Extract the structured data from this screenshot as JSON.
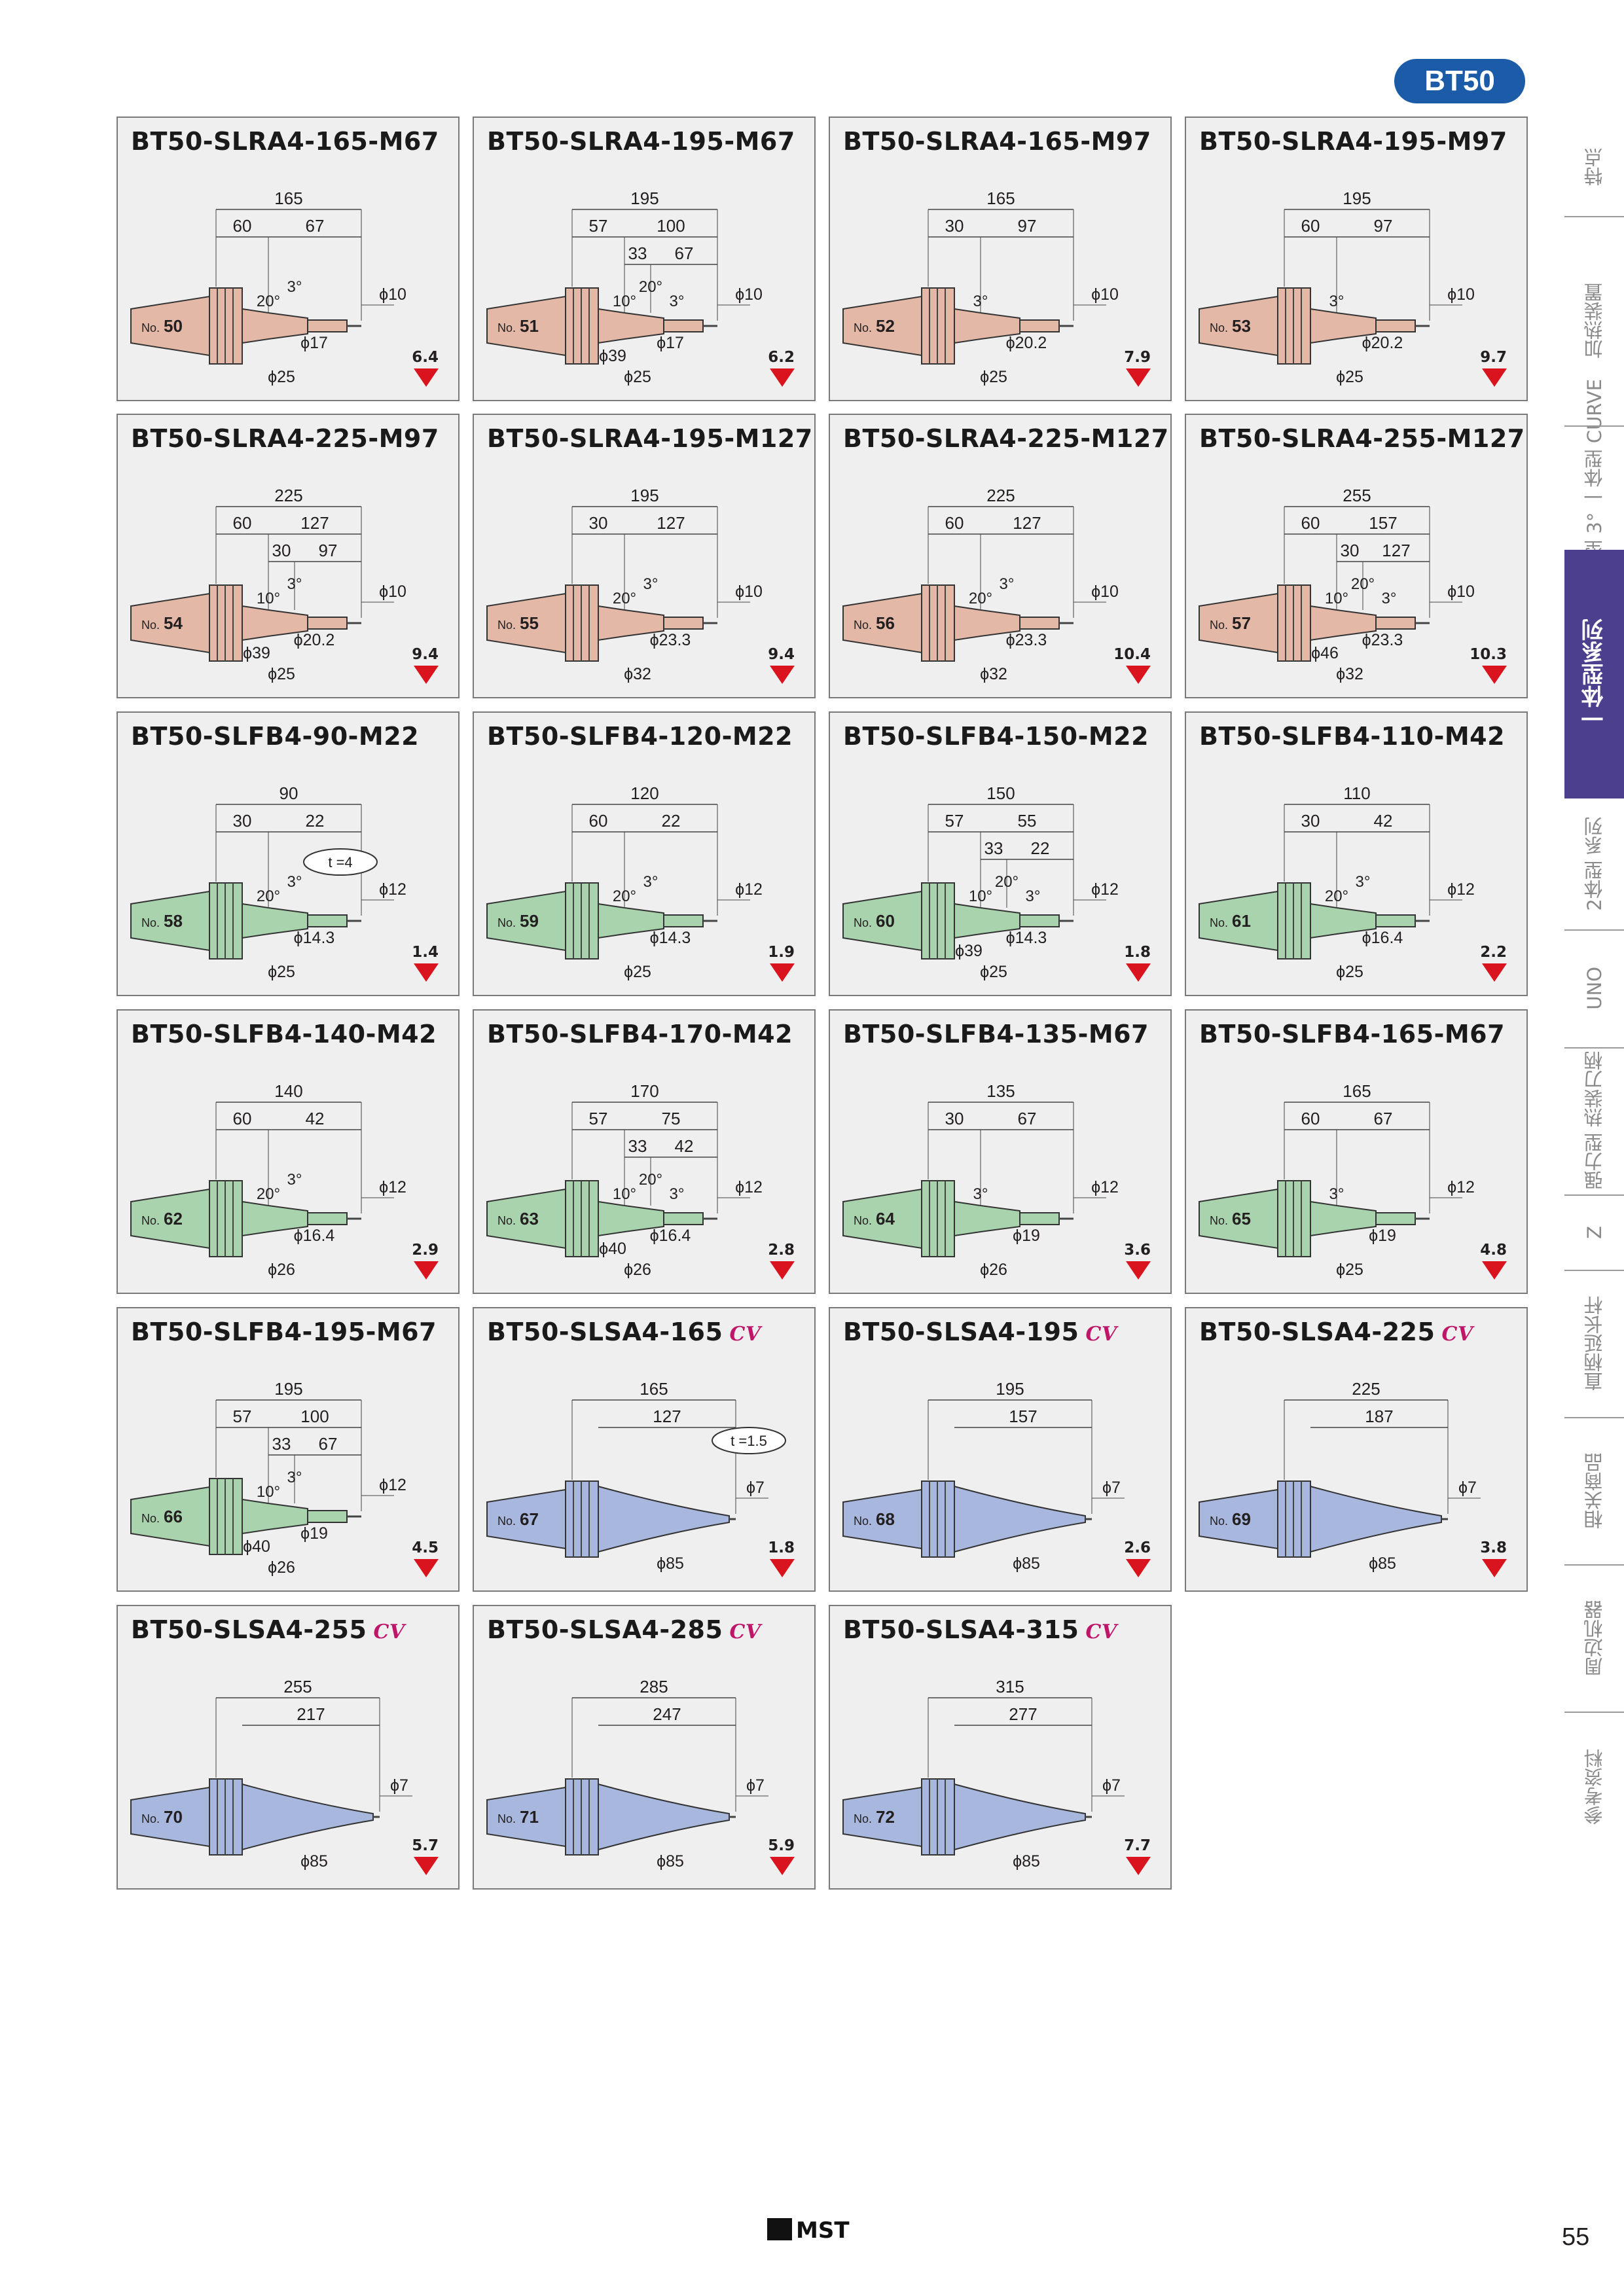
{
  "header": {
    "badge": "BT50"
  },
  "colors": {
    "ra4": "#e3b8a6",
    "fb4": "#a8d3ad",
    "sa4": "#a7b7de",
    "badge": "#1c5ba8",
    "nav_active": "#4b3f8e",
    "arrow": "#d9141f"
  },
  "products": [
    {
      "title": "BT50-SLRA4-165-M67",
      "no": "50",
      "weight": "6.4",
      "color": "ra4",
      "kind": "ra",
      "dims": [
        "165",
        "60",
        "67"
      ],
      "angles": [
        "20°",
        "3°"
      ],
      "diams": [
        "ϕ10",
        "ϕ17",
        "ϕ25"
      ]
    },
    {
      "title": "BT50-SLRA4-195-M67",
      "no": "51",
      "weight": "6.2",
      "color": "ra4",
      "kind": "ra",
      "dims": [
        "195",
        "57",
        "100",
        "33",
        "67"
      ],
      "angles": [
        "10°",
        "20°",
        "3°"
      ],
      "diams": [
        "ϕ10",
        "ϕ17",
        "ϕ39",
        "ϕ25"
      ]
    },
    {
      "title": "BT50-SLRA4-165-M97",
      "no": "52",
      "weight": "7.9",
      "color": "ra4",
      "kind": "ra",
      "dims": [
        "165",
        "30",
        "97"
      ],
      "angles": [
        "3°"
      ],
      "diams": [
        "ϕ10",
        "ϕ20.2",
        "ϕ25"
      ]
    },
    {
      "title": "BT50-SLRA4-195-M97",
      "no": "53",
      "weight": "9.7",
      "color": "ra4",
      "kind": "ra",
      "dims": [
        "195",
        "60",
        "97"
      ],
      "angles": [
        "3°"
      ],
      "diams": [
        "ϕ10",
        "ϕ20.2",
        "ϕ25"
      ]
    },
    {
      "title": "BT50-SLRA4-225-M97",
      "no": "54",
      "weight": "9.4",
      "color": "ra4",
      "kind": "ra",
      "dims": [
        "225",
        "60",
        "127",
        "30",
        "97"
      ],
      "angles": [
        "10°",
        "3°"
      ],
      "diams": [
        "ϕ10",
        "ϕ20.2",
        "ϕ39",
        "ϕ25"
      ]
    },
    {
      "title": "BT50-SLRA4-195-M127",
      "no": "55",
      "weight": "9.4",
      "color": "ra4",
      "kind": "ra",
      "dims": [
        "195",
        "30",
        "127"
      ],
      "angles": [
        "20°",
        "3°"
      ],
      "diams": [
        "ϕ10",
        "ϕ23.3",
        "ϕ32"
      ]
    },
    {
      "title": "BT50-SLRA4-225-M127",
      "no": "56",
      "weight": "10.4",
      "color": "ra4",
      "kind": "ra",
      "dims": [
        "225",
        "60",
        "127"
      ],
      "angles": [
        "20°",
        "3°"
      ],
      "diams": [
        "ϕ10",
        "ϕ23.3",
        "ϕ32"
      ]
    },
    {
      "title": "BT50-SLRA4-255-M127",
      "no": "57",
      "weight": "10.3",
      "color": "ra4",
      "kind": "ra",
      "dims": [
        "255",
        "60",
        "157",
        "30",
        "127"
      ],
      "angles": [
        "10°",
        "20°",
        "3°"
      ],
      "diams": [
        "ϕ10",
        "ϕ23.3",
        "ϕ46",
        "ϕ32"
      ]
    },
    {
      "title": "BT50-SLFB4-90-M22",
      "no": "58",
      "weight": "1.4",
      "color": "fb4",
      "kind": "fb",
      "tnote": "t =4",
      "dims": [
        "90",
        "30",
        "22"
      ],
      "angles": [
        "20°",
        "3°"
      ],
      "diams": [
        "ϕ12",
        "ϕ14.3",
        "ϕ25"
      ]
    },
    {
      "title": "BT50-SLFB4-120-M22",
      "no": "59",
      "weight": "1.9",
      "color": "fb4",
      "kind": "fb",
      "dims": [
        "120",
        "60",
        "22"
      ],
      "angles": [
        "20°",
        "3°"
      ],
      "diams": [
        "ϕ12",
        "ϕ14.3",
        "ϕ25"
      ]
    },
    {
      "title": "BT50-SLFB4-150-M22",
      "no": "60",
      "weight": "1.8",
      "color": "fb4",
      "kind": "fb",
      "dims": [
        "150",
        "57",
        "55",
        "33",
        "22"
      ],
      "angles": [
        "10°",
        "20°",
        "3°"
      ],
      "diams": [
        "ϕ12",
        "ϕ14.3",
        "ϕ39",
        "ϕ25"
      ]
    },
    {
      "title": "BT50-SLFB4-110-M42",
      "no": "61",
      "weight": "2.2",
      "color": "fb4",
      "kind": "fb",
      "dims": [
        "110",
        "30",
        "42"
      ],
      "angles": [
        "20°",
        "3°"
      ],
      "diams": [
        "ϕ12",
        "ϕ16.4",
        "ϕ25"
      ]
    },
    {
      "title": "BT50-SLFB4-140-M42",
      "no": "62",
      "weight": "2.9",
      "color": "fb4",
      "kind": "fb",
      "dims": [
        "140",
        "60",
        "42"
      ],
      "angles": [
        "20°",
        "3°"
      ],
      "diams": [
        "ϕ12",
        "ϕ16.4",
        "ϕ26"
      ]
    },
    {
      "title": "BT50-SLFB4-170-M42",
      "no": "63",
      "weight": "2.8",
      "color": "fb4",
      "kind": "fb",
      "dims": [
        "170",
        "57",
        "75",
        "33",
        "42"
      ],
      "angles": [
        "10°",
        "20°",
        "3°"
      ],
      "diams": [
        "ϕ12",
        "ϕ16.4",
        "ϕ40",
        "ϕ26"
      ]
    },
    {
      "title": "BT50-SLFB4-135-M67",
      "no": "64",
      "weight": "3.6",
      "color": "fb4",
      "kind": "fb",
      "dims": [
        "135",
        "30",
        "67"
      ],
      "angles": [
        "3°"
      ],
      "diams": [
        "ϕ12",
        "ϕ19",
        "ϕ26"
      ]
    },
    {
      "title": "BT50-SLFB4-165-M67",
      "no": "65",
      "weight": "4.8",
      "color": "fb4",
      "kind": "fb",
      "dims": [
        "165",
        "60",
        "67"
      ],
      "angles": [
        "3°"
      ],
      "diams": [
        "ϕ12",
        "ϕ19",
        "ϕ25"
      ]
    },
    {
      "title": "BT50-SLFB4-195-M67",
      "no": "66",
      "weight": "4.5",
      "color": "fb4",
      "kind": "fb",
      "dims": [
        "195",
        "57",
        "100",
        "33",
        "67"
      ],
      "angles": [
        "10°",
        "3°"
      ],
      "diams": [
        "ϕ12",
        "ϕ19",
        "ϕ40",
        "ϕ26"
      ]
    },
    {
      "title": "BT50-SLSA4-165",
      "cv": "CV",
      "no": "67",
      "weight": "1.8",
      "color": "sa4",
      "kind": "sa",
      "tnote": "t =1.5",
      "dims": [
        "165",
        "127"
      ],
      "angles": [],
      "diams": [
        "ϕ7",
        "ϕ85"
      ]
    },
    {
      "title": "BT50-SLSA4-195",
      "cv": "CV",
      "no": "68",
      "weight": "2.6",
      "color": "sa4",
      "kind": "sa",
      "dims": [
        "195",
        "157"
      ],
      "angles": [],
      "diams": [
        "ϕ7",
        "ϕ85"
      ]
    },
    {
      "title": "BT50-SLSA4-225",
      "cv": "CV",
      "no": "69",
      "weight": "3.8",
      "color": "sa4",
      "kind": "sa",
      "dims": [
        "225",
        "187"
      ],
      "angles": [],
      "diams": [
        "ϕ7",
        "ϕ85"
      ]
    },
    {
      "title": "BT50-SLSA4-255",
      "cv": "CV",
      "no": "70",
      "weight": "5.7",
      "color": "sa4",
      "kind": "sa",
      "dims": [
        "255",
        "217"
      ],
      "angles": [],
      "diams": [
        "ϕ7",
        "ϕ85"
      ]
    },
    {
      "title": "BT50-SLSA4-285",
      "cv": "CV",
      "no": "71",
      "weight": "5.9",
      "color": "sa4",
      "kind": "sa",
      "dims": [
        "285",
        "247"
      ],
      "angles": [],
      "diams": [
        "ϕ7",
        "ϕ85"
      ]
    },
    {
      "title": "BT50-SLSA4-315",
      "cv": "CV",
      "no": "72",
      "weight": "7.7",
      "color": "sa4",
      "kind": "sa",
      "dims": [
        "315",
        "277"
      ],
      "angles": [],
      "diams": [
        "ϕ7",
        "ϕ85"
      ]
    }
  ],
  "sidenav": [
    {
      "label": "特点",
      "active": false
    },
    {
      "label": "加热装置",
      "active": false
    },
    {
      "label": "一体型 3° 一体型 CURVE",
      "active": false
    },
    {
      "label": "一体型系列",
      "active": true
    },
    {
      "label": "2体型 系列",
      "active": false
    },
    {
      "label": "UNO",
      "active": false
    },
    {
      "label": "强力型 热装刀柄",
      "active": false
    },
    {
      "label": "Z",
      "active": false
    },
    {
      "label": "直柄延长杆",
      "active": false
    },
    {
      "label": "相关商品",
      "active": false
    },
    {
      "label": "周边机器",
      "active": false
    },
    {
      "label": "参考资料",
      "active": false
    }
  ],
  "footer": {
    "logo": "MST",
    "page": "55"
  }
}
